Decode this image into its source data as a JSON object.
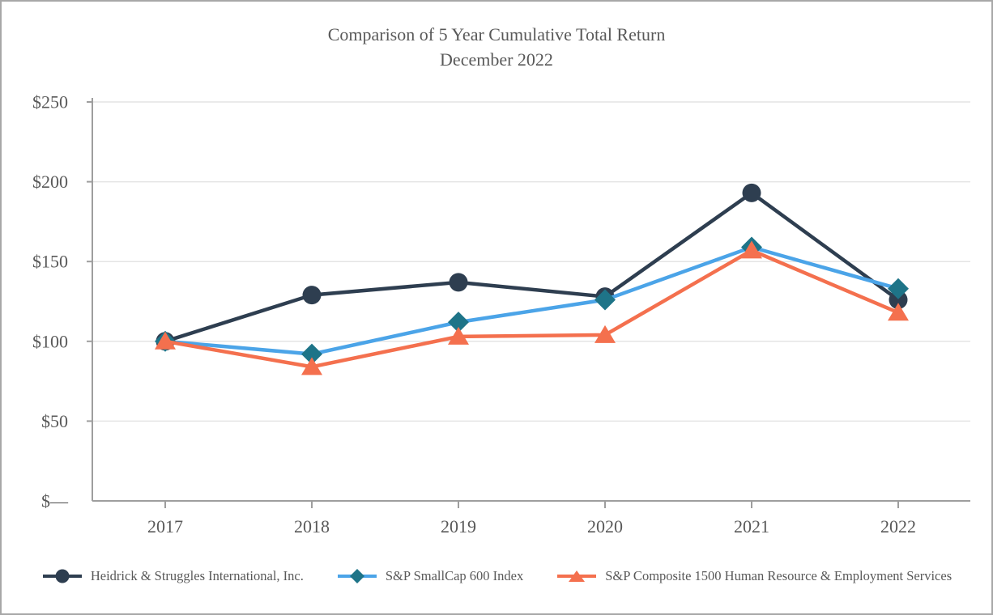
{
  "chart_data": {
    "type": "line",
    "title": "Comparison of 5 Year Cumulative Total Return",
    "subtitle": "December 2022",
    "categories": [
      "2017",
      "2018",
      "2019",
      "2020",
      "2021",
      "2022"
    ],
    "series": [
      {
        "name": "Heidrick & Struggles International, Inc.",
        "marker": "circle",
        "color": "#2e3e50",
        "marker_color": "#2e3e50",
        "values": [
          100,
          129,
          137,
          128,
          193,
          126
        ]
      },
      {
        "name": "S&P SmallCap 600 Index",
        "marker": "diamond",
        "color": "#4ba4e8",
        "marker_color": "#1e7488",
        "values": [
          100,
          92,
          112,
          126,
          159,
          133
        ]
      },
      {
        "name": "S&P Composite 1500 Human Resource & Employment Services",
        "marker": "triangle",
        "color": "#f4704e",
        "marker_color": "#f4704e",
        "values": [
          100,
          84,
          103,
          104,
          157,
          118
        ]
      }
    ],
    "y_axis": {
      "ticks": [
        0,
        50,
        100,
        150,
        200,
        250
      ],
      "tick_labels": [
        "$—",
        "$50",
        "$100",
        "$150",
        "$200",
        "$250"
      ],
      "ylim": [
        0,
        250
      ]
    },
    "x_axis": {
      "label": ""
    },
    "grid": true,
    "legend_position": "bottom",
    "colors": {
      "gridline": "#e4e4e4",
      "axis": "#9e9e9e",
      "text": "#595959"
    }
  }
}
